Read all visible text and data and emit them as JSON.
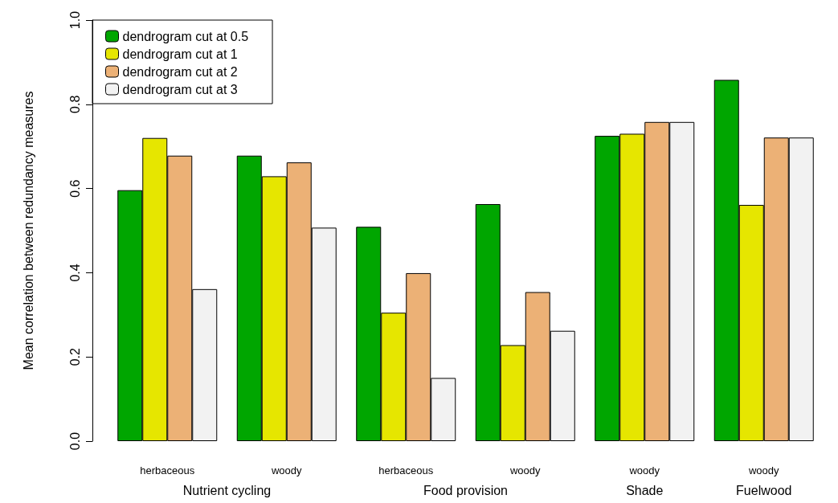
{
  "chart_data": {
    "type": "bar",
    "ylabel": "Mean correlation between redundancy measures",
    "categories": [
      "herbaceous",
      "woody",
      "herbaceous",
      "woody",
      "woody",
      "woody"
    ],
    "series": [
      {
        "name": "dendrogram cut at 0.5",
        "color": "#00a600",
        "values": [
          0.596,
          0.678,
          0.509,
          0.563,
          0.725,
          0.858
        ]
      },
      {
        "name": "dendrogram cut at 1",
        "color": "#e6e600",
        "values": [
          0.72,
          0.629,
          0.305,
          0.228,
          0.73,
          0.561
        ]
      },
      {
        "name": "dendrogram cut at 2",
        "color": "#ecb176",
        "values": [
          0.678,
          0.662,
          0.399,
          0.354,
          0.758,
          0.721
        ]
      },
      {
        "name": "dendrogram cut at 3",
        "color": "#f2f2f2",
        "values": [
          0.361,
          0.507,
          0.15,
          0.262,
          0.758,
          0.721
        ]
      }
    ],
    "annotations": [
      "Nutrient cycling",
      "Food provision",
      "Shade",
      "Fuelwood"
    ],
    "ylim": [
      0,
      1
    ],
    "yticks": [
      {
        "value": 0,
        "label": "0.0"
      },
      {
        "value": 0.2,
        "label": "0.2"
      },
      {
        "value": 0.4,
        "label": "0.4"
      },
      {
        "value": 0.6,
        "label": "0.6"
      },
      {
        "value": 0.8,
        "label": "0.8"
      },
      {
        "value": 1,
        "label": "1.0"
      }
    ],
    "grid": false,
    "legend": "top left"
  }
}
